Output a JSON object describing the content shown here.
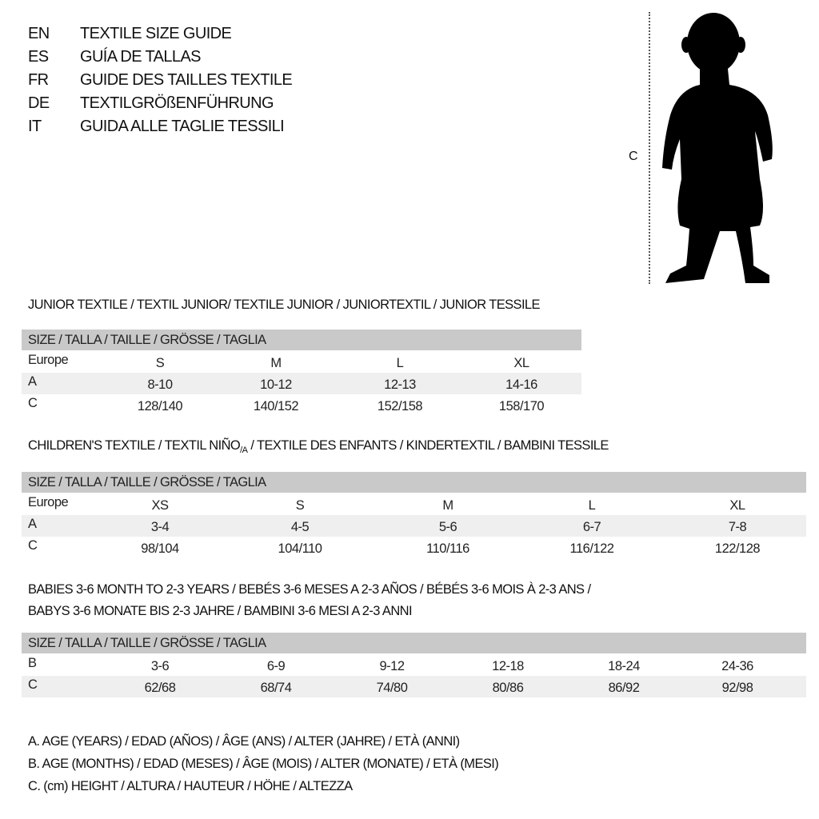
{
  "languages": [
    {
      "code": "EN",
      "title": "TEXTILE SIZE GUIDE"
    },
    {
      "code": "ES",
      "title": "GUÍA DE TALLAS"
    },
    {
      "code": "FR",
      "title": "GUIDE DES TAILLES TEXTILE"
    },
    {
      "code": "DE",
      "title": "TEXTILGRÖßENFÜHRUNG"
    },
    {
      "code": "IT",
      "title": "GUIDA ALLE TAGLIE TESSILI"
    }
  ],
  "figure": {
    "measure_label": "C",
    "icon": "child-silhouette-icon"
  },
  "colors": {
    "header_bar": "#c9c9c9",
    "shaded_row": "#efefef"
  },
  "junior": {
    "title": "JUNIOR TEXTILE / TEXTIL JUNIOR/ TEXTILE JUNIOR / JUNIORTEXTIL / JUNIOR TESSILE",
    "header": "SIZE / TALLA / TAILLE / GRÖSSE / TAGLIA",
    "rows": [
      {
        "label": "Europe",
        "cells": [
          "S",
          "M",
          "L",
          "XL"
        ]
      },
      {
        "label": "A",
        "cells": [
          "8-10",
          "10-12",
          "12-13",
          "14-16"
        ]
      },
      {
        "label": "C",
        "cells": [
          "128/140",
          "140/152",
          "152/158",
          "158/170"
        ]
      }
    ]
  },
  "children": {
    "title_pre": "CHILDREN'S TEXTILE / TEXTIL NIÑO",
    "title_sub": "/A",
    "title_post": " / TEXTILE DES ENFANTS / KINDERTEXTIL / BAMBINI TESSILE",
    "header": "SIZE / TALLA / TAILLE / GRÖSSE / TAGLIA",
    "rows": [
      {
        "label": "Europe",
        "cells": [
          "XS",
          "S",
          "M",
          "L",
          "XL"
        ]
      },
      {
        "label": "A",
        "cells": [
          "3-4",
          "4-5",
          "5-6",
          "6-7",
          "7-8"
        ]
      },
      {
        "label": "C",
        "cells": [
          "98/104",
          "104/110",
          "110/116",
          "116/122",
          "122/128"
        ]
      }
    ]
  },
  "babies": {
    "title_line1": "BABIES 3-6 MONTH TO 2-3 YEARS / BEBÉS 3-6 MESES A 2-3 AÑOS / BÉBÉS 3-6 MOIS À 2-3 ANS /",
    "title_line2": "BABYS 3-6 MONATE BIS 2-3 JAHRE / BAMBINI 3-6 MESI A 2-3 ANNI",
    "header": "SIZE / TALLA / TAILLE / GRÖSSE / TAGLIA",
    "rows": [
      {
        "label": "B",
        "cells": [
          "3-6",
          "6-9",
          "9-12",
          "12-18",
          "18-24",
          "24-36"
        ]
      },
      {
        "label": "C",
        "cells": [
          "62/68",
          "68/74",
          "74/80",
          "80/86",
          "86/92",
          "92/98"
        ]
      }
    ]
  },
  "legend": [
    "A. AGE (YEARS) / EDAD (AÑOS) / ÂGE (ANS) / ALTER (JAHRE) / ETÀ (ANNI)",
    "B. AGE (MONTHS) / EDAD (MESES) / ÂGE (MOIS) / ALTER (MONATE) / ETÀ (MESI)",
    "C. (cm) HEIGHT / ALTURA / HAUTEUR / HÖHE / ALTEZZA"
  ]
}
